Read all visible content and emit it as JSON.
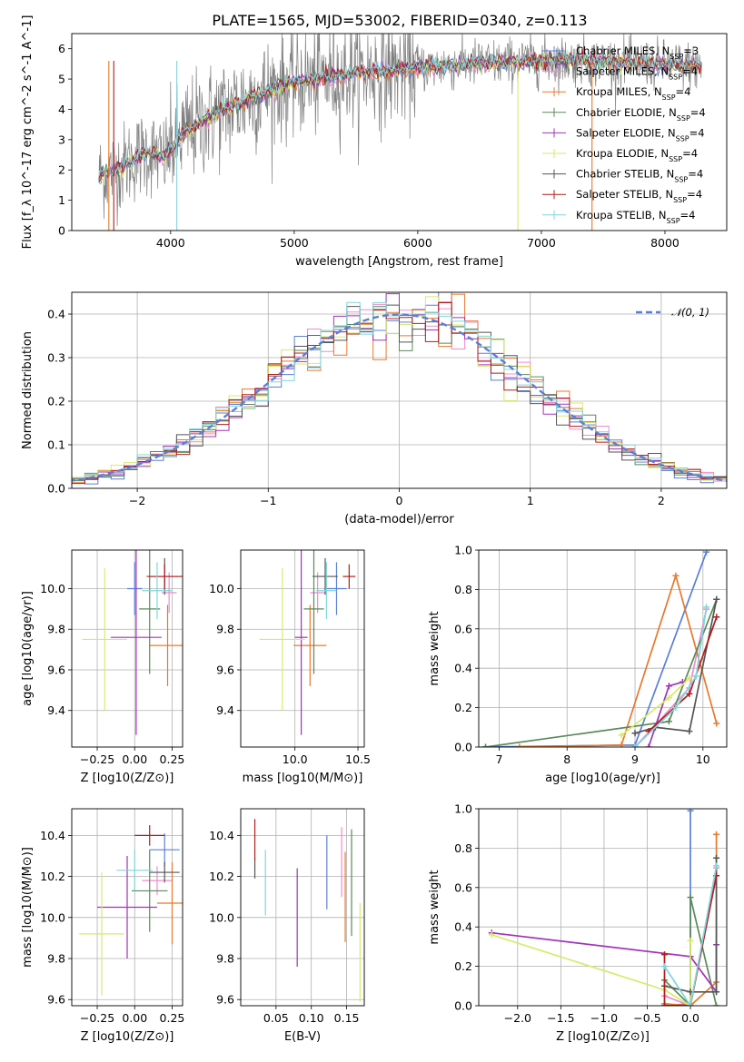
{
  "figure": {
    "title": "PLATE=1565, MJD=53002, FIBERID=0340, z=0.113",
    "colors": {
      "Chabrier MILES": "#5b7fd6",
      "Salpeter MILES": "#f08bd0",
      "Kroupa MILES": "#e8782c",
      "Chabrier ELODIE": "#5a8a5a",
      "Salpeter ELODIE": "#a033b8",
      "Kroupa ELODIE": "#d8ea6a",
      "Chabrier STELIB": "#555555",
      "Salpeter STELIB": "#b21c1c",
      "Kroupa STELIB": "#7ed6dc",
      "data": "#808080"
    }
  },
  "chart_data": [
    {
      "id": "spectrum",
      "type": "line",
      "title": "",
      "xlabel": "wavelength [Angstrom, rest frame]",
      "ylabel": "Flux [f_λ 10^-17 erg cm^-2 s^-1 A^-1]",
      "xlim": [
        3200,
        8500
      ],
      "ylim": [
        0,
        6.5
      ],
      "xticks": [
        4000,
        5000,
        6000,
        7000,
        8000
      ],
      "yticks": [
        0,
        1,
        2,
        3,
        4,
        5,
        6
      ],
      "legend_position": "top-right",
      "legend": [
        {
          "series": "Chabrier MILES",
          "text": "Chabrier MILES, N",
          "sub": "SSP",
          "tail": "=3"
        },
        {
          "series": "Salpeter MILES",
          "text": "Salpeter MILES, N",
          "sub": "SSP",
          "tail": "=4"
        },
        {
          "series": "Kroupa MILES",
          "text": "Kroupa MILES, N",
          "sub": "SSP",
          "tail": "=4"
        },
        {
          "series": "Chabrier ELODIE",
          "text": "Chabrier ELODIE, N",
          "sub": "SSP",
          "tail": "=4"
        },
        {
          "series": "Salpeter ELODIE",
          "text": "Salpeter ELODIE, N",
          "sub": "SSP",
          "tail": "=4"
        },
        {
          "series": "Kroupa ELODIE",
          "text": "Kroupa ELODIE, N",
          "sub": "SSP",
          "tail": "=4"
        },
        {
          "series": "Chabrier STELIB",
          "text": "Chabrier STELIB, N",
          "sub": "SSP",
          "tail": "=4"
        },
        {
          "series": "Salpeter STELIB",
          "text": "Salpeter STELIB, N",
          "sub": "SSP",
          "tail": "=4"
        },
        {
          "series": "Kroupa STELIB",
          "text": "Kroupa STELIB, N",
          "sub": "SSP",
          "tail": "=4"
        }
      ],
      "continuum": {
        "x": [
          3420,
          3600,
          3800,
          3950,
          4100,
          4300,
          4600,
          4900,
          5200,
          5500,
          5800,
          6100,
          6400,
          6700,
          7000,
          7300,
          7600,
          7900,
          8200,
          8300
        ],
        "y": [
          1.8,
          2.1,
          2.6,
          2.4,
          3.2,
          3.7,
          4.3,
          4.8,
          5.0,
          5.2,
          5.3,
          5.4,
          5.5,
          5.55,
          5.6,
          5.6,
          5.55,
          5.5,
          5.45,
          5.4
        ]
      }
    },
    {
      "id": "residuals",
      "type": "line",
      "title": "",
      "xlabel": "(data-model)/error",
      "ylabel": "Normed distribution",
      "xlim": [
        -2.5,
        2.5
      ],
      "ylim": [
        0,
        0.45
      ],
      "xticks": [
        -2,
        -1,
        0,
        1,
        2
      ],
      "yticks": [
        0.0,
        0.1,
        0.2,
        0.3,
        0.4
      ],
      "grid": true,
      "legend_position": "top-right",
      "reference_label": "𝒩(0, 1)",
      "bin_edges": [
        -2.6,
        -2.5,
        -2.4,
        -2.3,
        -2.2,
        -2.1,
        -2.0,
        -1.9,
        -1.8,
        -1.7,
        -1.6,
        -1.5,
        -1.4,
        -1.3,
        -1.2,
        -1.1,
        -1.0,
        -0.9,
        -0.8,
        -0.7,
        -0.6,
        -0.5,
        -0.4,
        -0.3,
        -0.2,
        -0.1,
        0.0,
        0.1,
        0.2,
        0.3,
        0.4,
        0.5,
        0.6,
        0.7,
        0.8,
        0.9,
        1.0,
        1.1,
        1.2,
        1.3,
        1.4,
        1.5,
        1.6,
        1.7,
        1.8,
        1.9,
        2.0,
        2.1,
        2.2,
        2.3,
        2.4,
        2.5,
        2.6
      ]
    },
    {
      "id": "age-vs-Z",
      "type": "scatter",
      "xlabel": "Z [log10(Z/Z⊙)]",
      "ylabel": "age [log10(age/yr)]",
      "xlim": [
        -0.42,
        0.32
      ],
      "ylim": [
        9.22,
        10.19
      ],
      "xticks": [
        -0.25,
        0.0,
        0.25
      ],
      "yticks": [
        9.4,
        9.6,
        9.8,
        10.0
      ],
      "points": [
        {
          "series": "Chabrier MILES",
          "x": 0.0,
          "y": 10.0,
          "xerr": 0.05,
          "yerr": 0.13
        },
        {
          "series": "Salpeter MILES",
          "x": 0.23,
          "y": 9.98,
          "xerr": 0.05,
          "yerr": 0.1
        },
        {
          "series": "Kroupa MILES",
          "x": 0.22,
          "y": 9.72,
          "xerr": 0.12,
          "yerr": 0.2
        },
        {
          "series": "Chabrier ELODIE",
          "x": 0.1,
          "y": 9.9,
          "xerr": 0.07,
          "yerr": 0.32
        },
        {
          "series": "Salpeter ELODIE",
          "x": 0.01,
          "y": 9.76,
          "xerr": 0.17,
          "yerr": 0.48
        },
        {
          "series": "Kroupa ELODIE",
          "x": -0.2,
          "y": 9.75,
          "xerr": 0.15,
          "yerr": 0.35
        },
        {
          "series": "Chabrier STELIB",
          "x": 0.2,
          "y": 10.06,
          "xerr": 0.1,
          "yerr": 0.09
        },
        {
          "series": "Salpeter STELIB",
          "x": 0.2,
          "y": 10.06,
          "xerr": 0.12,
          "yerr": 0.06
        },
        {
          "series": "Kroupa STELIB",
          "x": 0.15,
          "y": 9.99,
          "xerr": 0.1,
          "yerr": 0.14
        }
      ]
    },
    {
      "id": "age-vs-mass",
      "type": "scatter",
      "xlabel": "mass [log10(M/M⊙)]",
      "ylabel": "",
      "xlim": [
        9.57,
        10.55
      ],
      "ylim": [
        9.22,
        10.19
      ],
      "xticks": [
        10.0,
        10.5
      ],
      "yticks": [
        9.4,
        9.6,
        9.8,
        10.0
      ],
      "points": [
        {
          "series": "Chabrier MILES",
          "x": 10.33,
          "y": 10.0,
          "xerr": 0.08,
          "yerr": 0.13
        },
        {
          "series": "Salpeter MILES",
          "x": 10.18,
          "y": 9.98,
          "xerr": 0.06,
          "yerr": 0.1
        },
        {
          "series": "Kroupa MILES",
          "x": 10.12,
          "y": 9.72,
          "xerr": 0.13,
          "yerr": 0.2
        },
        {
          "series": "Chabrier ELODIE",
          "x": 10.15,
          "y": 9.9,
          "xerr": 0.08,
          "yerr": 0.32
        },
        {
          "series": "Salpeter ELODIE",
          "x": 10.05,
          "y": 9.76,
          "xerr": 0.05,
          "yerr": 0.48
        },
        {
          "series": "Kroupa ELODIE",
          "x": 9.9,
          "y": 9.75,
          "xerr": 0.18,
          "yerr": 0.35
        },
        {
          "series": "Chabrier STELIB",
          "x": 10.24,
          "y": 10.06,
          "xerr": 0.1,
          "yerr": 0.09
        },
        {
          "series": "Salpeter STELIB",
          "x": 10.43,
          "y": 10.06,
          "xerr": 0.05,
          "yerr": 0.06
        },
        {
          "series": "Kroupa STELIB",
          "x": 10.25,
          "y": 9.99,
          "xerr": 0.08,
          "yerr": 0.14
        }
      ]
    },
    {
      "id": "mass-weight-vs-age",
      "type": "line",
      "xlabel": "age [log10(age/yr)]",
      "ylabel": "mass weight",
      "xlim": [
        6.7,
        10.35
      ],
      "ylim": [
        0,
        1.0
      ],
      "xticks": [
        7,
        8,
        9,
        10
      ],
      "yticks": [
        0.0,
        0.2,
        0.4,
        0.6,
        0.8,
        1.0
      ],
      "grid": true,
      "series": [
        {
          "name": "Chabrier MILES",
          "x": [
            6.8,
            9.0,
            10.05
          ],
          "y": [
            0.0,
            0.01,
            0.99
          ]
        },
        {
          "name": "Salpeter MILES",
          "x": [
            9.0,
            9.8,
            10.05
          ],
          "y": [
            0.0,
            0.3,
            0.7
          ]
        },
        {
          "name": "Kroupa MILES",
          "x": [
            7.3,
            8.8,
            9.6,
            10.2
          ],
          "y": [
            0.0,
            0.01,
            0.87,
            0.12
          ]
        },
        {
          "name": "Chabrier ELODIE",
          "x": [
            6.8,
            9.5,
            10.2
          ],
          "y": [
            0.0,
            0.13,
            0.75
          ]
        },
        {
          "name": "Salpeter ELODIE",
          "x": [
            9.2,
            9.5,
            9.7
          ],
          "y": [
            0.0,
            0.31,
            0.33
          ]
        },
        {
          "name": "Kroupa ELODIE",
          "x": [
            8.8,
            9.5,
            9.8
          ],
          "y": [
            0.06,
            0.25,
            0.35
          ]
        },
        {
          "name": "Chabrier STELIB",
          "x": [
            9.0,
            9.3,
            9.8,
            10.2
          ],
          "y": [
            0.07,
            0.1,
            0.08,
            0.75
          ]
        },
        {
          "name": "Salpeter STELIB",
          "x": [
            9.2,
            9.8,
            10.2
          ],
          "y": [
            0.08,
            0.27,
            0.66
          ]
        },
        {
          "name": "Kroupa STELIB",
          "x": [
            9.0,
            9.6,
            9.9,
            10.05
          ],
          "y": [
            0.0,
            0.2,
            0.36,
            0.71
          ]
        }
      ]
    },
    {
      "id": "mass-vs-Z",
      "type": "scatter",
      "xlabel": "Z [log10(Z/Z⊙)]",
      "ylabel": "mass [log10(M/M⊙)]",
      "xlim": [
        -0.42,
        0.32
      ],
      "ylim": [
        9.57,
        10.53
      ],
      "xticks": [
        -0.25,
        0.0,
        0.25
      ],
      "yticks": [
        9.6,
        9.8,
        10.0,
        10.2,
        10.4
      ],
      "points": [
        {
          "series": "Chabrier MILES",
          "x": 0.2,
          "y": 10.33,
          "xerr": 0.1,
          "yerr": 0.08
        },
        {
          "series": "Salpeter MILES",
          "x": 0.15,
          "y": 10.18,
          "xerr": 0.1,
          "yerr": 0.07
        },
        {
          "series": "Kroupa MILES",
          "x": 0.25,
          "y": 10.07,
          "xerr": 0.1,
          "yerr": 0.2
        },
        {
          "series": "Chabrier ELODIE",
          "x": 0.1,
          "y": 10.13,
          "xerr": 0.12,
          "yerr": 0.2
        },
        {
          "series": "Salpeter ELODIE",
          "x": -0.05,
          "y": 10.05,
          "xerr": 0.2,
          "yerr": 0.25
        },
        {
          "series": "Kroupa ELODIE",
          "x": -0.22,
          "y": 9.92,
          "xerr": 0.15,
          "yerr": 0.3
        },
        {
          "series": "Chabrier STELIB",
          "x": 0.2,
          "y": 10.22,
          "xerr": 0.1,
          "yerr": 0.05
        },
        {
          "series": "Salpeter STELIB",
          "x": 0.1,
          "y": 10.4,
          "xerr": 0.1,
          "yerr": 0.05
        },
        {
          "series": "Kroupa STELIB",
          "x": 0.0,
          "y": 10.23,
          "xerr": 0.12,
          "yerr": 0.1
        }
      ]
    },
    {
      "id": "mass-vs-ebv",
      "type": "scatter",
      "xlabel": "E(B-V)",
      "ylabel": "",
      "xlim": [
        0.0,
        0.175
      ],
      "ylim": [
        9.57,
        10.53
      ],
      "xticks": [
        0.05,
        0.1,
        0.15
      ],
      "yticks": [
        9.6,
        9.8,
        10.0,
        10.2,
        10.4
      ],
      "points": [
        {
          "series": "Chabrier MILES",
          "x": 0.122,
          "y": 10.22,
          "xerr": 0,
          "yerr": 0.18
        },
        {
          "series": "Salpeter MILES",
          "x": 0.143,
          "y": 10.27,
          "xerr": 0,
          "yerr": 0.17
        },
        {
          "series": "Kroupa MILES",
          "x": 0.148,
          "y": 10.1,
          "xerr": 0,
          "yerr": 0.22
        },
        {
          "series": "Chabrier ELODIE",
          "x": 0.157,
          "y": 10.17,
          "xerr": 0,
          "yerr": 0.26
        },
        {
          "series": "Salpeter ELODIE",
          "x": 0.08,
          "y": 10.0,
          "xerr": 0,
          "yerr": 0.24
        },
        {
          "series": "Kroupa ELODIE",
          "x": 0.169,
          "y": 9.83,
          "xerr": 0,
          "yerr": 0.24
        },
        {
          "series": "Chabrier STELIB",
          "x": 0.02,
          "y": 10.24,
          "xerr": 0,
          "yerr": 0.05
        },
        {
          "series": "Salpeter STELIB",
          "x": 0.02,
          "y": 10.38,
          "xerr": 0,
          "yerr": 0.1
        },
        {
          "series": "Kroupa STELIB",
          "x": 0.035,
          "y": 10.17,
          "xerr": 0,
          "yerr": 0.16
        }
      ]
    },
    {
      "id": "mass-weight-vs-Z",
      "type": "line",
      "xlabel": "Z [log10(Z/Z⊙)]",
      "ylabel": "mass weight",
      "xlim": [
        -2.45,
        0.42
      ],
      "ylim": [
        0,
        1.0
      ],
      "xticks": [
        -2.0,
        -1.5,
        -1.0,
        -0.5,
        0.0
      ],
      "yticks": [
        0.0,
        0.2,
        0.4,
        0.6,
        0.8,
        1.0
      ],
      "grid": true,
      "series": [
        {
          "name": "Chabrier MILES",
          "x": [
            -0.3,
            0.0,
            0.0
          ],
          "y": [
            0.0,
            0.01,
            0.99
          ]
        },
        {
          "name": "Salpeter MILES",
          "x": [
            -0.3,
            0.0,
            0.3
          ],
          "y": [
            0.05,
            0.0,
            0.7
          ]
        },
        {
          "name": "Kroupa MILES",
          "x": [
            -0.3,
            0.0,
            0.3,
            0.3
          ],
          "y": [
            0.01,
            0.0,
            0.12,
            0.87
          ]
        },
        {
          "name": "Chabrier ELODIE",
          "x": [
            -0.3,
            0.0,
            0.0,
            0.3
          ],
          "y": [
            0.13,
            0.0,
            0.55,
            0.0
          ]
        },
        {
          "name": "Salpeter ELODIE",
          "x": [
            -2.3,
            0.0,
            0.3,
            0.3
          ],
          "y": [
            0.37,
            0.25,
            0.07,
            0.31
          ]
        },
        {
          "name": "Kroupa ELODIE",
          "x": [
            -2.3,
            -0.3,
            0.0,
            0.0
          ],
          "y": [
            0.36,
            0.08,
            0.0,
            0.33
          ]
        },
        {
          "name": "Chabrier STELIB",
          "x": [
            -0.3,
            0.0,
            0.3,
            0.3
          ],
          "y": [
            0.1,
            0.07,
            0.07,
            0.75
          ]
        },
        {
          "name": "Salpeter STELIB",
          "x": [
            -0.3,
            -0.3,
            0.0,
            0.3
          ],
          "y": [
            0.26,
            0.0,
            0.0,
            0.66
          ]
        },
        {
          "name": "Kroupa STELIB",
          "x": [
            -0.3,
            0.0,
            0.3
          ],
          "y": [
            0.2,
            0.0,
            0.71
          ]
        }
      ]
    }
  ]
}
